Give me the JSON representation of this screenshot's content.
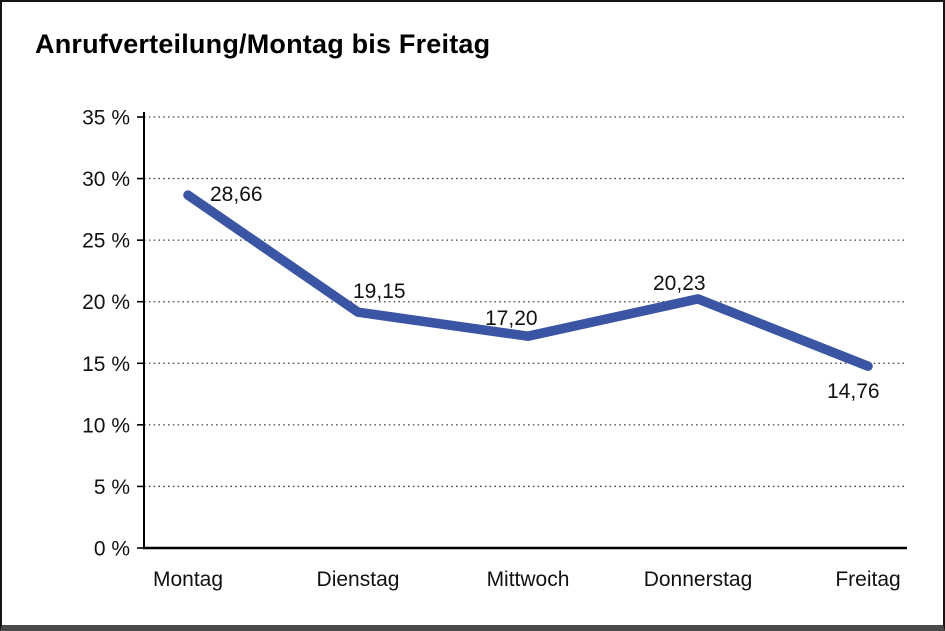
{
  "chart_data": {
    "type": "line",
    "title": "Anrufverteilung/Montag bis Freitag",
    "categories": [
      "Montag",
      "Dienstag",
      "Mittwoch",
      "Donnerstag",
      "Freitag"
    ],
    "series": [
      {
        "name": "Anrufverteilung",
        "values": [
          28.66,
          19.15,
          17.2,
          20.23,
          14.76
        ]
      }
    ],
    "point_labels": [
      "28,66",
      "19,15",
      "17,20",
      "20,23",
      "14,76"
    ],
    "y_tick_labels": [
      "35 %",
      "30 %",
      "25 %",
      "20 %",
      "15 %",
      "10 %",
      "5 %",
      "0 %"
    ],
    "xlabel": "",
    "ylabel": "",
    "ylim": [
      0,
      35
    ],
    "y_step": 5,
    "grid": "horizontal-dotted",
    "legend": "none",
    "colors": {
      "line": "#3A55A4",
      "grid": "#444444",
      "axis": "#000000",
      "text": "#111111"
    }
  }
}
